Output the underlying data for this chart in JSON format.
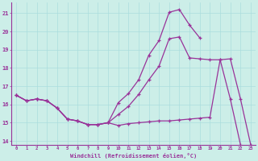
{
  "xlabel": "Windchill (Refroidissement éolien,°C)",
  "bg_color": "#cceee8",
  "line_color": "#993399",
  "grid_color": "#aadddd",
  "xlim": [
    -0.5,
    23.5
  ],
  "ylim": [
    13.8,
    21.6
  ],
  "xticks": [
    0,
    1,
    2,
    3,
    4,
    5,
    6,
    7,
    8,
    9,
    10,
    11,
    12,
    13,
    14,
    15,
    16,
    17,
    18,
    19,
    20,
    21,
    22,
    23
  ],
  "yticks": [
    14,
    15,
    16,
    17,
    18,
    19,
    20,
    21
  ],
  "line1_x": [
    0,
    1,
    2,
    3,
    4,
    5,
    6,
    7,
    8,
    9,
    10,
    11,
    12,
    13,
    14,
    15,
    16,
    17,
    18,
    19,
    20,
    21,
    22,
    23
  ],
  "line1_y": [
    16.5,
    16.2,
    16.3,
    16.2,
    15.8,
    15.2,
    15.1,
    14.9,
    14.9,
    15.0,
    14.85,
    14.95,
    15.0,
    15.05,
    15.1,
    15.1,
    15.15,
    15.2,
    15.25,
    15.3,
    18.45,
    18.5,
    16.3,
    13.8
  ],
  "line2_x": [
    0,
    1,
    2,
    3,
    4,
    5,
    6,
    7,
    8,
    9,
    10,
    11,
    12,
    13,
    14,
    15,
    16,
    17,
    18
  ],
  "line2_y": [
    16.5,
    16.2,
    16.3,
    16.2,
    15.8,
    15.2,
    15.1,
    14.9,
    14.9,
    15.0,
    16.1,
    16.6,
    17.35,
    18.7,
    19.5,
    21.05,
    21.2,
    20.35,
    19.65
  ],
  "line3_x": [
    0,
    1,
    2,
    3,
    4,
    5,
    6,
    7,
    8,
    9,
    10,
    11,
    12,
    13,
    14,
    15,
    16,
    17,
    18,
    19,
    20,
    21,
    22,
    23
  ],
  "line3_y": [
    16.5,
    16.2,
    16.3,
    16.2,
    15.8,
    15.2,
    15.1,
    14.9,
    14.9,
    15.0,
    15.45,
    15.9,
    16.55,
    17.35,
    18.1,
    19.6,
    19.7,
    18.55,
    18.5,
    18.45,
    18.45,
    16.3,
    13.8,
    null
  ]
}
